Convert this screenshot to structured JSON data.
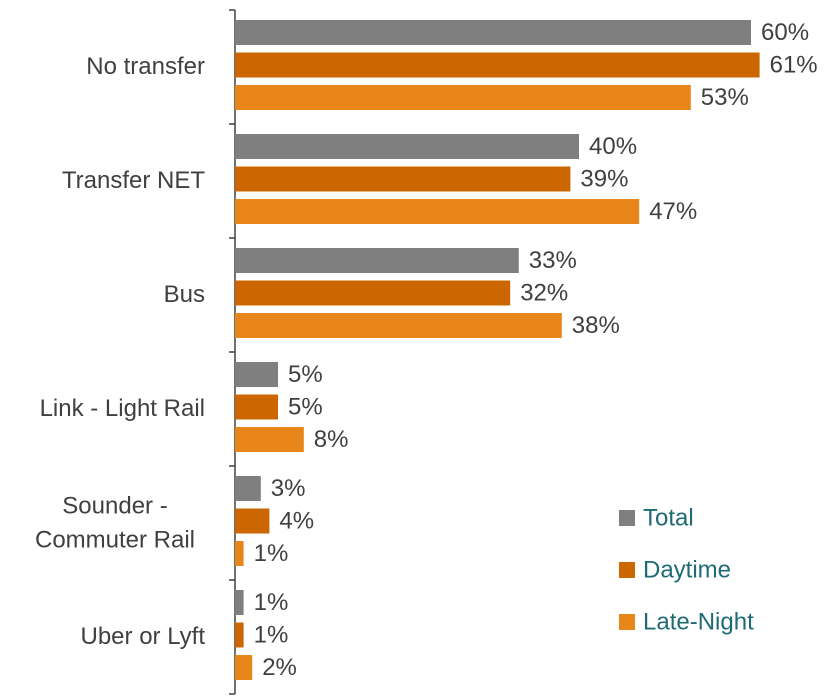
{
  "chart_data": {
    "type": "bar",
    "orientation": "horizontal",
    "categories": [
      "No transfer",
      "Transfer NET",
      "Bus",
      "Link - Light Rail",
      "Sounder - Commuter Rail",
      "Uber or Lyft"
    ],
    "series": [
      {
        "name": "Total",
        "color": "#7f7f7f",
        "values": [
          60,
          40,
          33,
          5,
          3,
          1
        ],
        "value_labels": [
          "60%",
          "40%",
          "33%",
          "5%",
          "3%",
          "1%"
        ]
      },
      {
        "name": "Daytime",
        "color": "#cc6600",
        "values": [
          61,
          39,
          32,
          5,
          4,
          1
        ],
        "value_labels": [
          "61%",
          "39%",
          "32%",
          "5%",
          "4%",
          "1%"
        ]
      },
      {
        "name": "Late-Night",
        "color": "#e8861a",
        "values": [
          53,
          47,
          38,
          8,
          1,
          2
        ],
        "value_labels": [
          "53%",
          "47%",
          "38%",
          "8%",
          "1%",
          "2%"
        ]
      }
    ],
    "legend": "lower right"
  }
}
